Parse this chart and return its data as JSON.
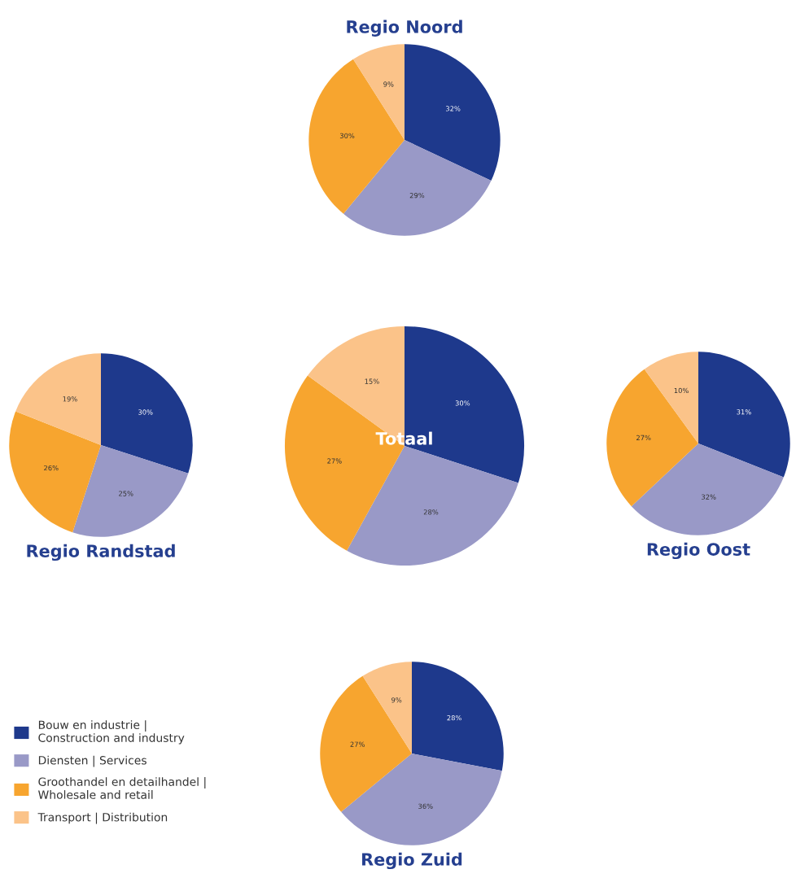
{
  "chart_data": [
    {
      "type": "pie",
      "title": "Regio Noord",
      "categories": [
        "Bouw en industrie |\nConstruction and industry",
        "Diensten | Services",
        "Groothandel en detailhandel |\nWholesale and retail",
        "Transport | Distribution"
      ],
      "values": [
        32,
        29,
        30,
        9
      ],
      "value_labels": [
        "32%",
        "29%",
        "30%",
        "9%"
      ],
      "colors": [
        "#1e398c",
        "#9999c7",
        "#f7a52f",
        "#fbc389"
      ],
      "legend": "bottom left"
    },
    {
      "type": "pie",
      "title": "Regio Randstad",
      "values": [
        30,
        25,
        26,
        19
      ],
      "value_labels": [
        "30%",
        "25%",
        "26%",
        "19%"
      ],
      "colors": [
        "#1e398c",
        "#9999c7",
        "#f7a52f",
        "#fbc389"
      ]
    },
    {
      "type": "pie",
      "title": "Totaal",
      "values": [
        30,
        28,
        27,
        15
      ],
      "value_labels": [
        "30%",
        "28%",
        "27%",
        "15%"
      ],
      "colors": [
        "#1e398c",
        "#9999c7",
        "#f7a52f",
        "#fbc389"
      ]
    },
    {
      "type": "pie",
      "title": "Regio Oost",
      "values": [
        31,
        32,
        27,
        10
      ],
      "value_labels": [
        "31%",
        "32%",
        "27%",
        "10%"
      ],
      "colors": [
        "#1e398c",
        "#9999c7",
        "#f7a52f",
        "#fbc389"
      ]
    },
    {
      "type": "pie",
      "title": "Regio Zuid",
      "values": [
        28,
        36,
        27,
        9
      ],
      "value_labels": [
        "28%",
        "36%",
        "27%",
        "9%"
      ],
      "colors": [
        "#1e398c",
        "#9999c7",
        "#f7a52f",
        "#fbc389"
      ]
    }
  ]
}
